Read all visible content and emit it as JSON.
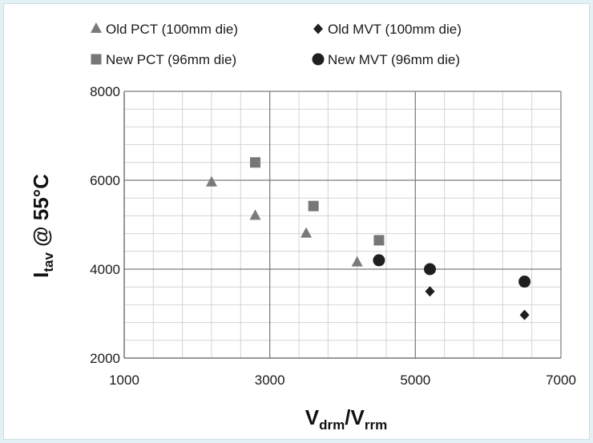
{
  "chart_data": {
    "type": "scatter",
    "title": "",
    "xlabel": {
      "main": "V",
      "sub1": "drm",
      "sep": "/V",
      "sub2": "rrm"
    },
    "ylabel": {
      "main": "I",
      "sub": "tav",
      "rest": " @ 55°C"
    },
    "xlim": [
      1000,
      7000
    ],
    "ylim": [
      2000,
      8000
    ],
    "x_ticks": [
      1000,
      3000,
      5000,
      7000
    ],
    "y_ticks": [
      2000,
      4000,
      6000,
      8000
    ],
    "x_tick_labels": [
      "1000",
      "3000",
      "5000",
      "7000"
    ],
    "y_tick_labels": [
      "2000",
      "4000",
      "6000",
      "8000"
    ],
    "grid": true,
    "legend_position": "top",
    "series": [
      {
        "name": "Old PCT (100mm die)",
        "marker": "triangle",
        "color": "#7a7a7a",
        "points": [
          {
            "x": 2200,
            "y": 5950
          },
          {
            "x": 2800,
            "y": 5200
          },
          {
            "x": 3500,
            "y": 4800
          },
          {
            "x": 4200,
            "y": 4150
          }
        ]
      },
      {
        "name": "Old MVT (100mm die)",
        "marker": "diamond",
        "color": "#1f1f1f",
        "points": [
          {
            "x": 5200,
            "y": 3500
          },
          {
            "x": 6500,
            "y": 2970
          }
        ]
      },
      {
        "name": "New  PCT (96mm die)",
        "marker": "square",
        "color": "#777777",
        "points": [
          {
            "x": 2800,
            "y": 6400
          },
          {
            "x": 3600,
            "y": 5420
          },
          {
            "x": 4500,
            "y": 4650
          }
        ]
      },
      {
        "name": "New  MVT (96mm  die)",
        "marker": "circle",
        "color": "#1f1f1f",
        "points": [
          {
            "x": 4500,
            "y": 4200
          },
          {
            "x": 5200,
            "y": 4000
          },
          {
            "x": 6500,
            "y": 3720
          }
        ]
      }
    ]
  }
}
